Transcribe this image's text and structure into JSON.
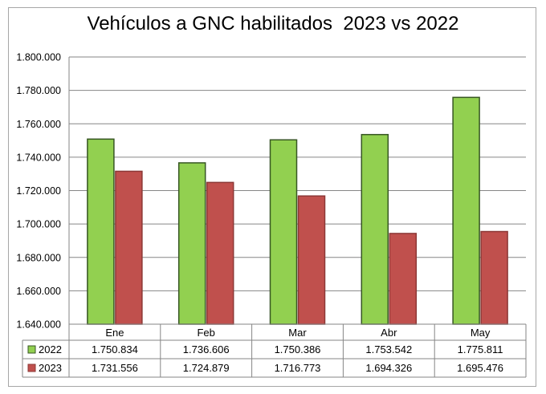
{
  "chart_data": {
    "type": "bar",
    "title": "Vehículos a GNC habilitados  2023 vs 2022",
    "categories": [
      "Ene",
      "Feb",
      "Mar",
      "Abr",
      "May"
    ],
    "series": [
      {
        "name": "2022",
        "color": "#92d050",
        "values": [
          1750834,
          1736606,
          1750386,
          1753542,
          1775811
        ],
        "labels": [
          "1.750.834",
          "1.736.606",
          "1.750.386",
          "1.753.542",
          "1.775.811"
        ]
      },
      {
        "name": "2023",
        "color": "#c0504d",
        "values": [
          1731556,
          1724879,
          1716773,
          1694326,
          1695476
        ],
        "labels": [
          "1.731.556",
          "1.724.879",
          "1.716.773",
          "1.694.326",
          "1.695.476"
        ]
      }
    ],
    "ylim": [
      1640000,
      1800000
    ],
    "yticks": [
      1640000,
      1660000,
      1680000,
      1700000,
      1720000,
      1740000,
      1760000,
      1780000,
      1800000
    ],
    "ytick_labels": [
      "1.640.000",
      "1.660.000",
      "1.680.000",
      "1.700.000",
      "1.720.000",
      "1.740.000",
      "1.760.000",
      "1.780.000",
      "1.800.000"
    ],
    "grid": true,
    "legend": "data-table",
    "xlabel": "",
    "ylabel": ""
  }
}
